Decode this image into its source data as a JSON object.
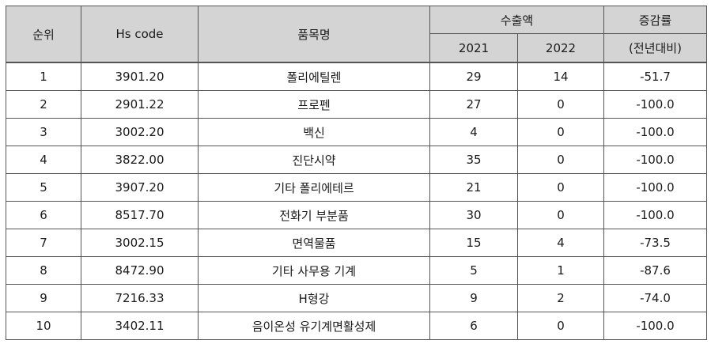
{
  "header": {
    "rank": "순위",
    "hs_code": "Hs code",
    "item_name": "품목명",
    "export_amount": "수출액",
    "year_2021": "2021",
    "year_2022": "2022",
    "change_rate": "증감률",
    "change_rate_sub": "(전년대비)"
  },
  "rows": [
    {
      "rank": "1",
      "hs": "3901.20",
      "name": "폴리에틸렌",
      "v2021": "29",
      "v2022": "14",
      "rate": "-51.7"
    },
    {
      "rank": "2",
      "hs": "2901.22",
      "name": "프로펜",
      "v2021": "27",
      "v2022": "0",
      "rate": "-100.0"
    },
    {
      "rank": "3",
      "hs": "3002.20",
      "name": "백신",
      "v2021": "4",
      "v2022": "0",
      "rate": "-100.0"
    },
    {
      "rank": "4",
      "hs": "3822.00",
      "name": "진단시약",
      "v2021": "35",
      "v2022": "0",
      "rate": "-100.0"
    },
    {
      "rank": "5",
      "hs": "3907.20",
      "name": "기타 폴리에테르",
      "v2021": "21",
      "v2022": "0",
      "rate": "-100.0"
    },
    {
      "rank": "6",
      "hs": "8517.70",
      "name": "전화기 부분품",
      "v2021": "30",
      "v2022": "0",
      "rate": "-100.0"
    },
    {
      "rank": "7",
      "hs": "3002.15",
      "name": "면역물품",
      "v2021": "15",
      "v2022": "4",
      "rate": "-73.5"
    },
    {
      "rank": "8",
      "hs": "8472.90",
      "name": "기타 사무용 기계",
      "v2021": "5",
      "v2022": "1",
      "rate": "-87.6"
    },
    {
      "rank": "9",
      "hs": "7216.33",
      "name": "H형강",
      "v2021": "9",
      "v2022": "2",
      "rate": "-74.0"
    },
    {
      "rank": "10",
      "hs": "3402.11",
      "name": "음이온성 유기계면활성제",
      "v2021": "6",
      "v2022": "0",
      "rate": "-100.0"
    }
  ]
}
